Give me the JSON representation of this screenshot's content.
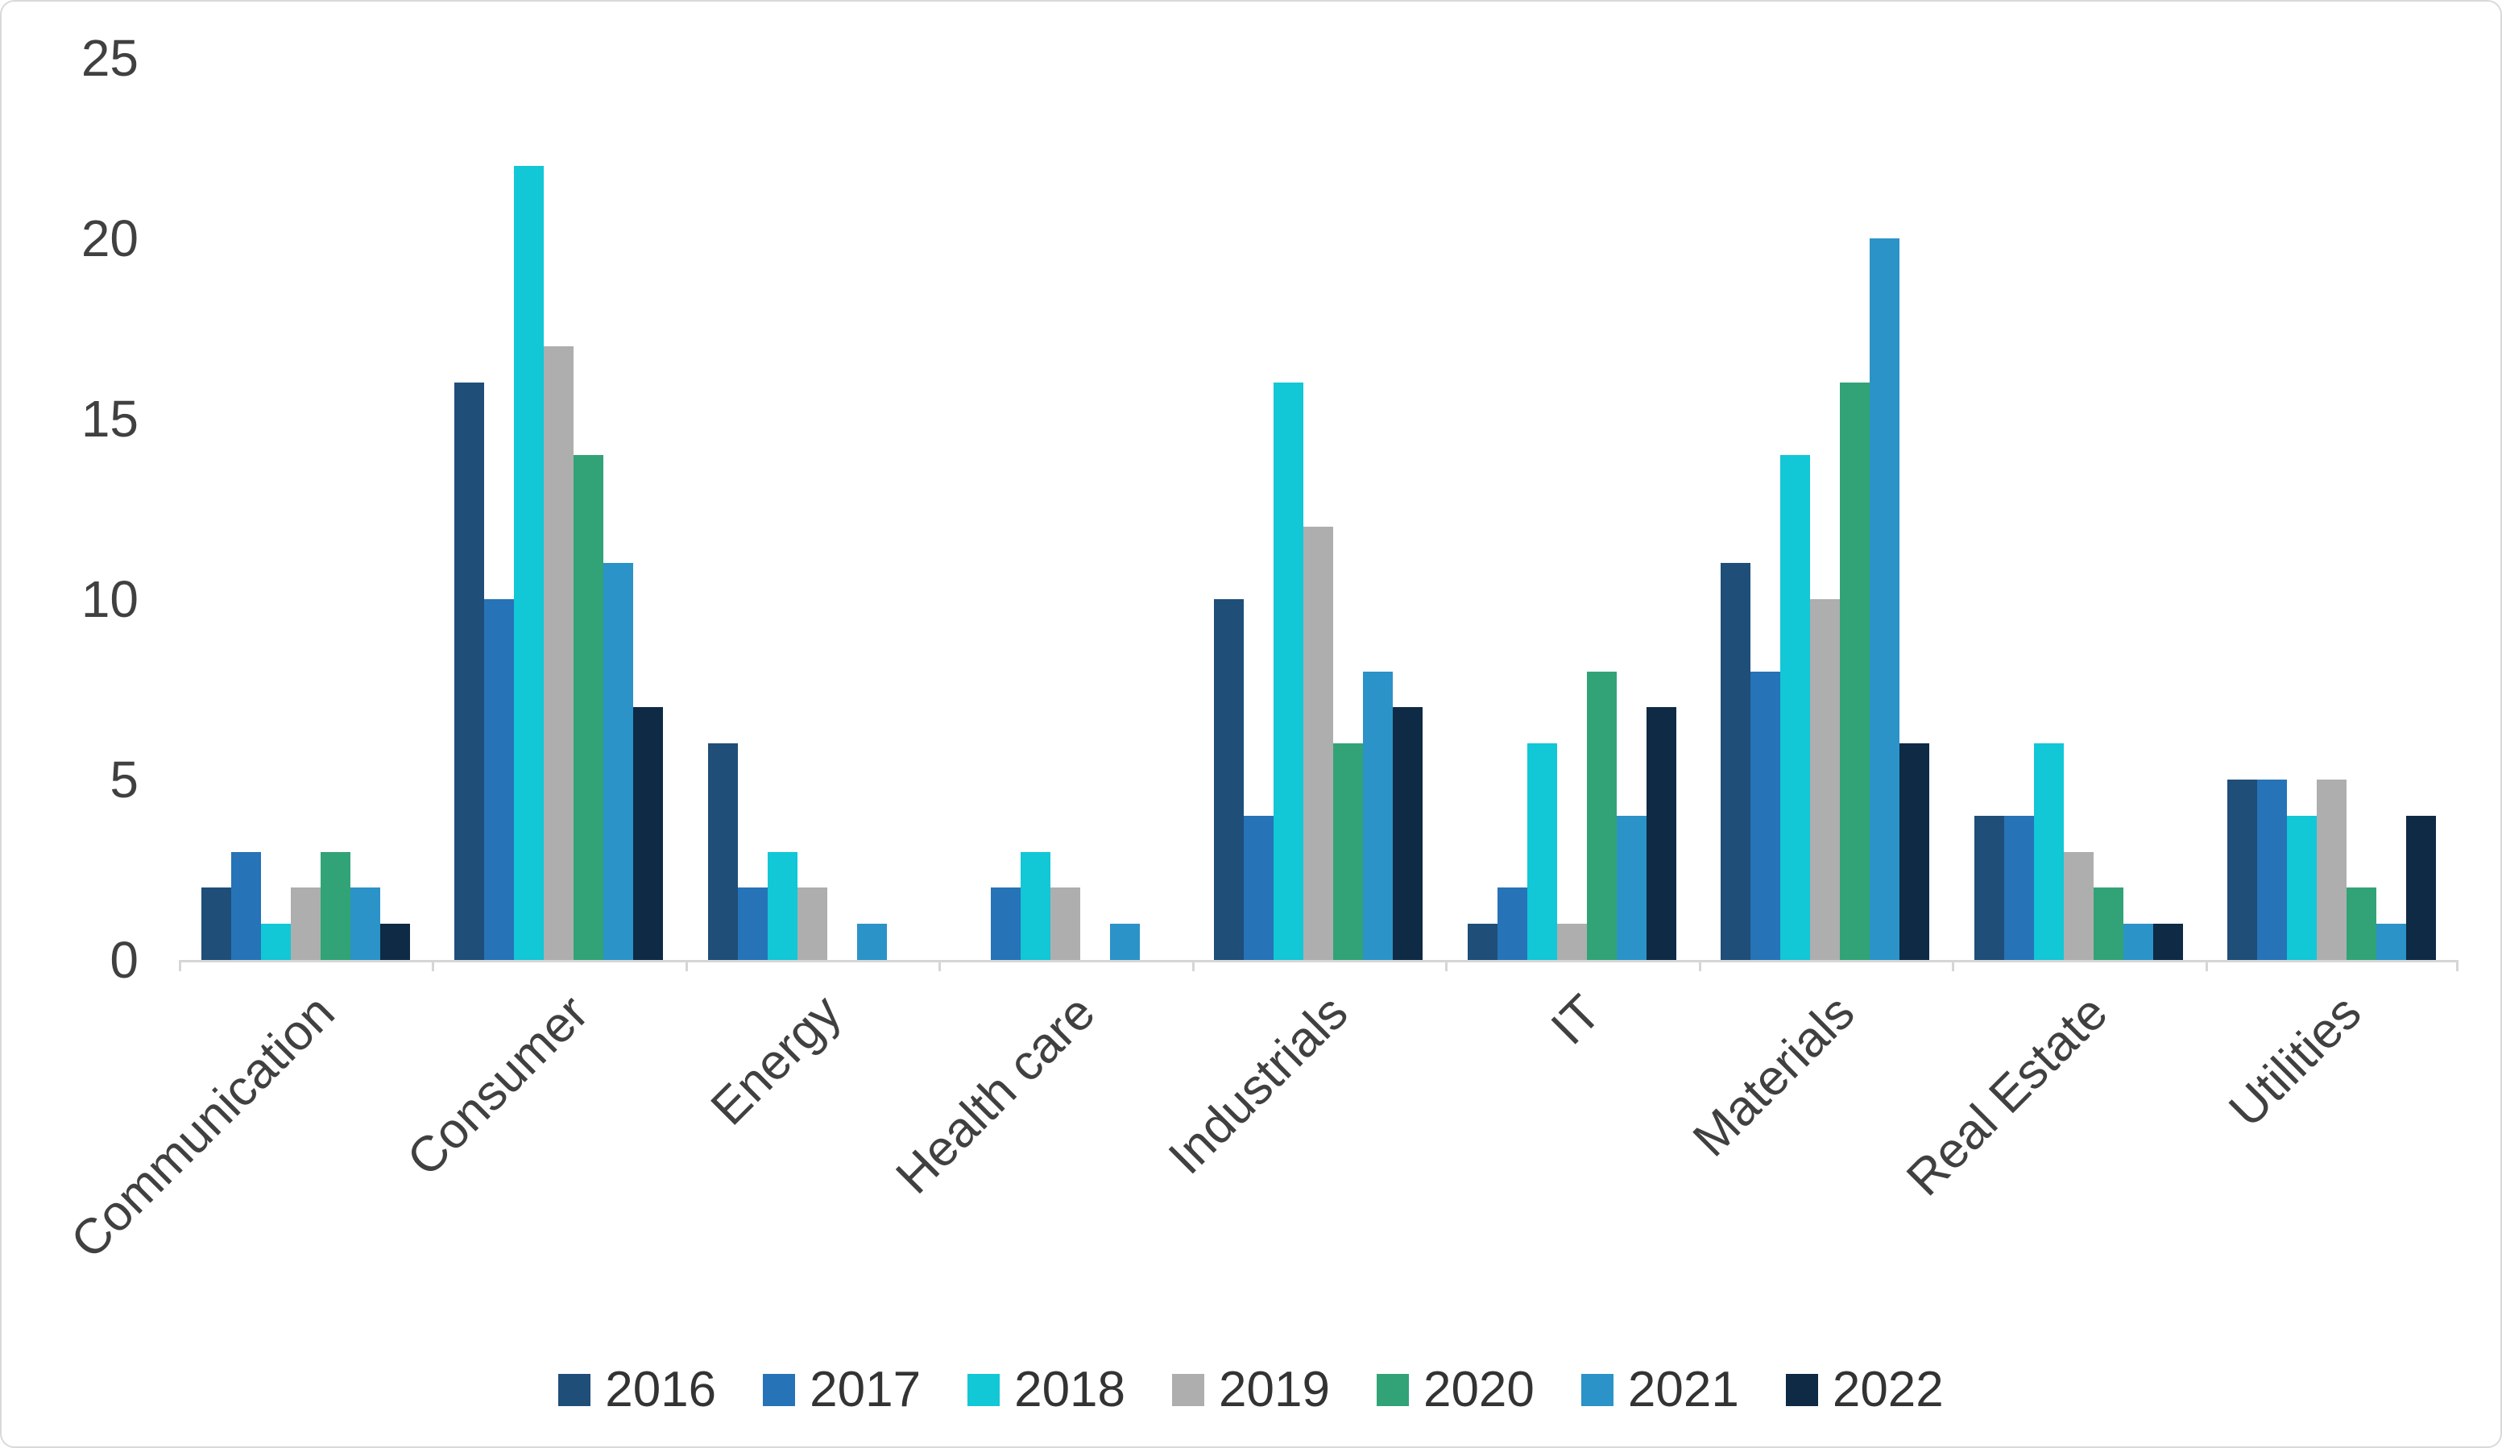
{
  "chart_data": {
    "type": "bar",
    "title": "",
    "xlabel": "",
    "ylabel": "",
    "ylim": [
      0,
      25
    ],
    "yticks": [
      0,
      5,
      10,
      15,
      20,
      25
    ],
    "grid": false,
    "legend_position": "bottom",
    "axis_line_color": "#D6D6D6",
    "text_color": "#404040",
    "categories": [
      "Communication",
      "Consumer",
      "Energy",
      "Health care",
      "Industrials",
      "IT",
      "Materials",
      "Real Estate",
      "Utilities"
    ],
    "series": [
      {
        "name": "2016",
        "color": "#1F4E79",
        "values": [
          2,
          16,
          6,
          0,
          10,
          1,
          11,
          4,
          5
        ]
      },
      {
        "name": "2017",
        "color": "#2673B8",
        "values": [
          3,
          10,
          2,
          2,
          4,
          2,
          8,
          4,
          5
        ]
      },
      {
        "name": "2018",
        "color": "#12C7D6",
        "values": [
          1,
          22,
          3,
          3,
          16,
          6,
          14,
          6,
          4
        ]
      },
      {
        "name": "2019",
        "color": "#AEAEAE",
        "values": [
          2,
          17,
          2,
          2,
          12,
          1,
          10,
          3,
          5
        ]
      },
      {
        "name": "2020",
        "color": "#32A377",
        "values": [
          3,
          14,
          0,
          0,
          6,
          8,
          16,
          2,
          2
        ]
      },
      {
        "name": "2021",
        "color": "#2B93C7",
        "values": [
          2,
          11,
          1,
          1,
          8,
          4,
          20,
          1,
          1
        ]
      },
      {
        "name": "2022",
        "color": "#0E2A45",
        "values": [
          1,
          7,
          0,
          0,
          7,
          7,
          6,
          1,
          4
        ]
      }
    ]
  }
}
